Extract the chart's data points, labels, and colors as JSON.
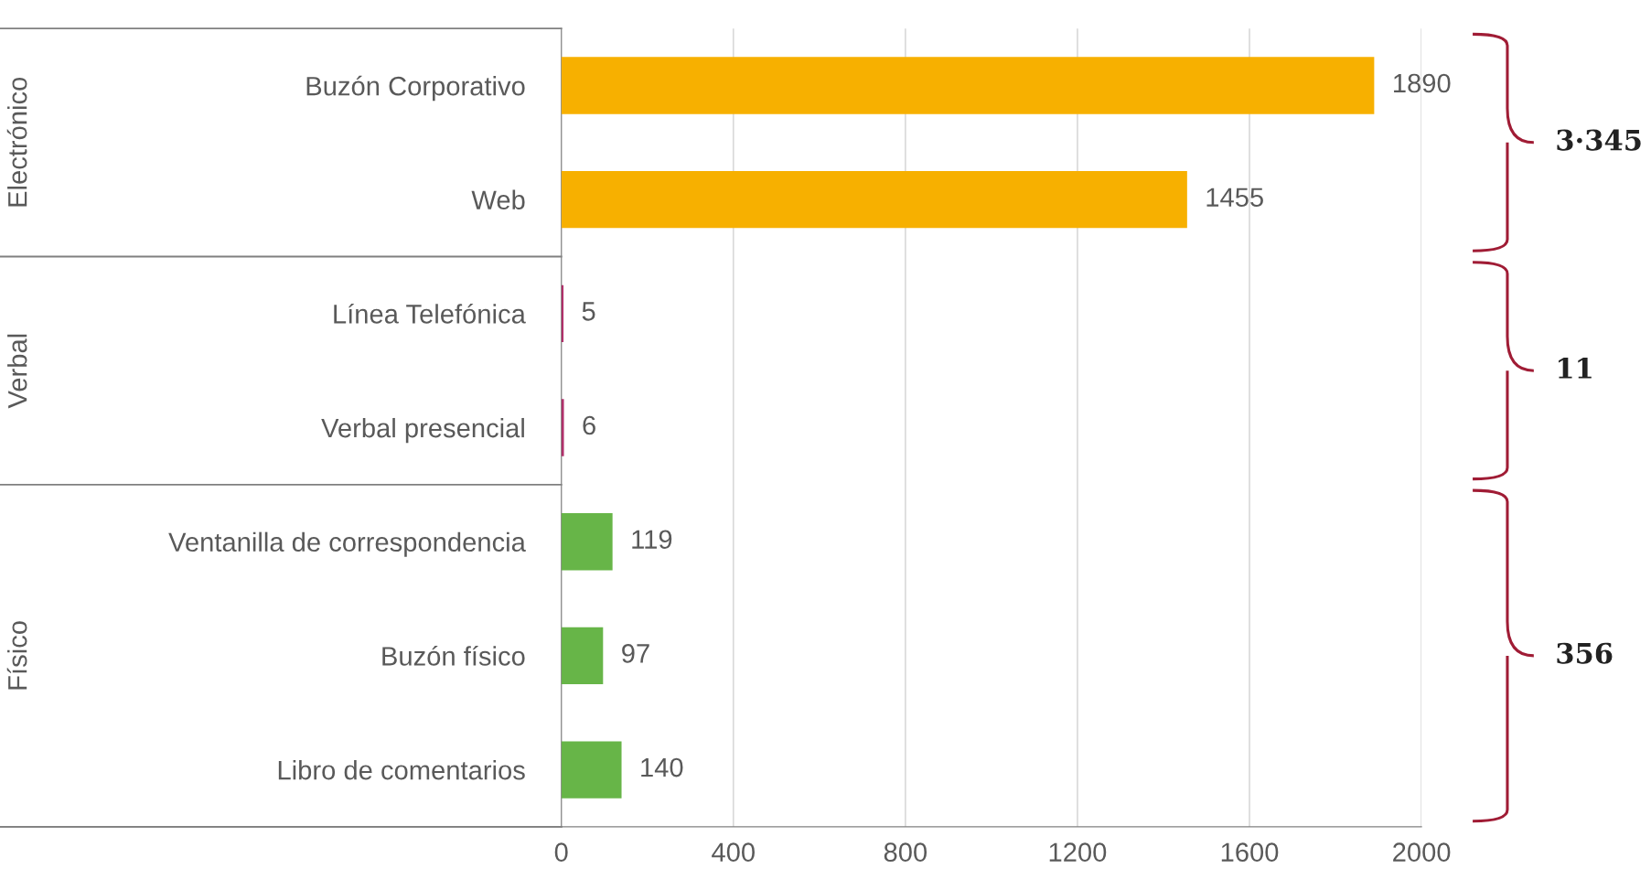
{
  "chart_data": {
    "type": "bar",
    "orientation": "horizontal",
    "categories": [
      "Buzón Corporativo",
      "Web",
      "Línea Telefónica",
      "Verbal presencial",
      "Ventanilla de correspondencia",
      "Buzón físico",
      "Libro de comentarios"
    ],
    "values": [
      1890,
      1455,
      5,
      6,
      119,
      97,
      140
    ],
    "colors": [
      "#f7b000",
      "#f7b000",
      "#b0306a",
      "#b0306a",
      "#67b548",
      "#67b548",
      "#67b548"
    ],
    "data_labels": true,
    "xlim": [
      0,
      2000
    ],
    "xticks": [
      0,
      400,
      800,
      1200,
      1600,
      2000
    ],
    "grid": "x",
    "annotations": [
      "Electrónico",
      "Verbal",
      "Físico",
      "3·345",
      "11",
      "356"
    ]
  }
}
